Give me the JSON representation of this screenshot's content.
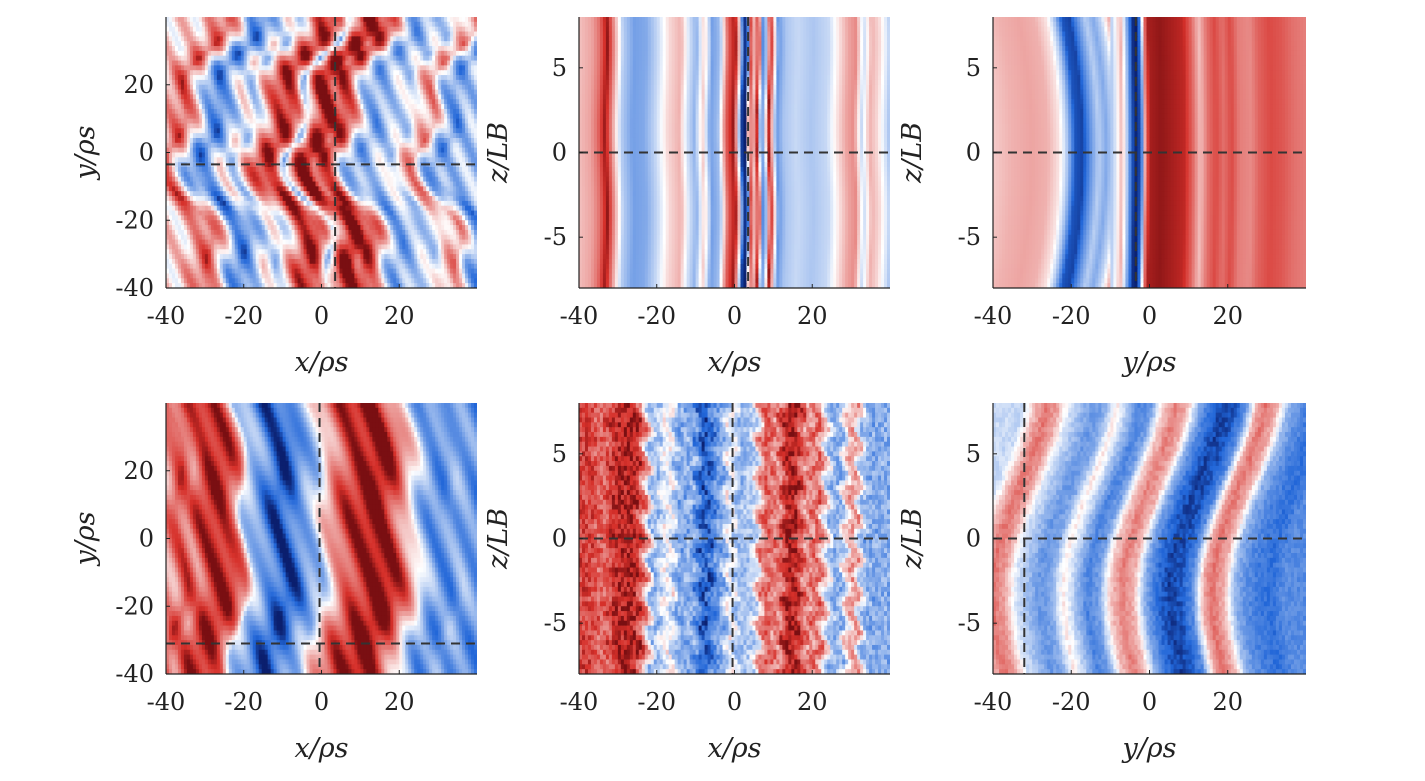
{
  "chart_data": [
    {
      "id": "top-left",
      "type": "heatmap",
      "xlabel": "x/ρs",
      "ylabel": "y/ρs",
      "xlim": [
        -40,
        40
      ],
      "ylim": [
        -40,
        40
      ],
      "xticks": [
        -40,
        -20,
        0,
        20
      ],
      "yticks": [
        -40,
        -20,
        0,
        20
      ],
      "xtick_labels": [
        "-40",
        "-20",
        "0",
        "20"
      ],
      "ytick_labels": [
        "-40",
        "-20",
        "0",
        "20"
      ],
      "crosshair": {
        "x": 3.5,
        "y": -3.5
      },
      "field": "stripes",
      "seed": 11,
      "profile": [
        [
          -40,
          0.15
        ],
        [
          -36,
          0.45
        ],
        [
          -33,
          0.7
        ],
        [
          -30,
          0.2
        ],
        [
          -27,
          -0.45
        ],
        [
          -24,
          -0.7
        ],
        [
          -21,
          -0.35
        ],
        [
          -18,
          0.05
        ],
        [
          -15,
          -0.25
        ],
        [
          -12,
          0.3
        ],
        [
          -9,
          0.75
        ],
        [
          -6,
          0.9
        ],
        [
          -4,
          0.55
        ],
        [
          -2,
          -0.3
        ],
        [
          0,
          0.5
        ],
        [
          2,
          0.95
        ],
        [
          4,
          1.0
        ],
        [
          6,
          0.7
        ],
        [
          8,
          0.85
        ],
        [
          10,
          0.6
        ],
        [
          13,
          -0.2
        ],
        [
          16,
          -0.5
        ],
        [
          19,
          -0.35
        ],
        [
          22,
          -0.15
        ],
        [
          25,
          -0.2
        ],
        [
          28,
          0.25
        ],
        [
          31,
          0.45
        ],
        [
          34,
          -0.3
        ],
        [
          37,
          -0.6
        ],
        [
          40,
          -0.3
        ]
      ]
    },
    {
      "id": "top-middle",
      "type": "heatmap",
      "xlabel": "x/ρs",
      "ylabel": "z/LB",
      "xlim": [
        -40,
        40
      ],
      "ylim": [
        -8,
        8
      ],
      "xticks": [
        -40,
        -20,
        0,
        20
      ],
      "yticks": [
        -5,
        0,
        5
      ],
      "xtick_labels": [
        "-40",
        "-20",
        "0",
        "20"
      ],
      "ytick_labels": [
        "-5",
        "0",
        "5"
      ],
      "crosshair": {
        "x": 3.5,
        "y": 0
      },
      "field": "bands",
      "seed": 23,
      "profile": [
        [
          -40,
          0.25
        ],
        [
          -37,
          0.35
        ],
        [
          -35,
          0.55
        ],
        [
          -33,
          0.95
        ],
        [
          -31,
          0.35
        ],
        [
          -29,
          -0.25
        ],
        [
          -26,
          -0.5
        ],
        [
          -23,
          -0.45
        ],
        [
          -20,
          -0.2
        ],
        [
          -17,
          0.15
        ],
        [
          -14,
          0.3
        ],
        [
          -12,
          -0.15
        ],
        [
          -10,
          -0.4
        ],
        [
          -8,
          0.2
        ],
        [
          -6,
          -0.5
        ],
        [
          -4,
          -0.35
        ],
        [
          -2,
          0.6
        ],
        [
          0,
          0.95
        ],
        [
          1,
          0.2
        ],
        [
          2,
          -0.9
        ],
        [
          3,
          -1.0
        ],
        [
          4,
          0.7
        ],
        [
          5,
          0.2
        ],
        [
          6,
          0.9
        ],
        [
          7,
          -0.6
        ],
        [
          8,
          -0.3
        ],
        [
          9,
          0.95
        ],
        [
          11,
          -0.55
        ],
        [
          13,
          -0.3
        ],
        [
          16,
          -0.2
        ],
        [
          20,
          -0.3
        ],
        [
          24,
          -0.2
        ],
        [
          27,
          0.15
        ],
        [
          29,
          0.35
        ],
        [
          31,
          0.45
        ],
        [
          33,
          -0.2
        ],
        [
          35,
          0.3
        ],
        [
          37,
          0.15
        ],
        [
          40,
          -0.3
        ]
      ]
    },
    {
      "id": "top-right",
      "type": "heatmap",
      "xlabel": "y/ρs",
      "ylabel": "z/LB",
      "xlim": [
        -40,
        40
      ],
      "ylim": [
        -8,
        8
      ],
      "xticks": [
        -40,
        -20,
        0,
        20
      ],
      "yticks": [
        -5,
        0,
        5
      ],
      "xtick_labels": [
        "-40",
        "-20",
        "0",
        "20"
      ],
      "ytick_labels": [
        "-5",
        "0",
        "5"
      ],
      "crosshair": {
        "x": -3.5,
        "y": 0
      },
      "field": "curved-bands",
      "seed": 37,
      "profile": [
        [
          -40,
          0.2
        ],
        [
          -35,
          0.3
        ],
        [
          -30,
          0.35
        ],
        [
          -26,
          0.3
        ],
        [
          -23,
          0.1
        ],
        [
          -21,
          -0.3
        ],
        [
          -19,
          -0.85
        ],
        [
          -17,
          -0.9
        ],
        [
          -15,
          -0.55
        ],
        [
          -13,
          -0.25
        ],
        [
          -11,
          -0.45
        ],
        [
          -9,
          -0.2
        ],
        [
          -7,
          0.3
        ],
        [
          -5,
          -0.6
        ],
        [
          -4,
          -0.95
        ],
        [
          -3,
          -1.0
        ],
        [
          -2,
          -0.7
        ],
        [
          -1,
          0.5
        ],
        [
          0,
          0.9
        ],
        [
          3,
          0.95
        ],
        [
          6,
          0.9
        ],
        [
          9,
          0.85
        ],
        [
          11,
          0.6
        ],
        [
          13,
          0.25
        ],
        [
          15,
          0.55
        ],
        [
          17,
          0.7
        ],
        [
          19,
          0.55
        ],
        [
          21,
          0.7
        ],
        [
          23,
          0.5
        ],
        [
          26,
          0.45
        ],
        [
          28,
          0.6
        ],
        [
          31,
          0.7
        ],
        [
          34,
          0.65
        ],
        [
          37,
          0.55
        ],
        [
          40,
          0.5
        ]
      ]
    },
    {
      "id": "bottom-left",
      "type": "heatmap",
      "xlabel": "x/ρs",
      "ylabel": "y/ρs",
      "xlim": [
        -40,
        40
      ],
      "ylim": [
        -40,
        40
      ],
      "xticks": [
        -40,
        -20,
        0,
        20
      ],
      "yticks": [
        -40,
        -20,
        0,
        20
      ],
      "xtick_labels": [
        "-40",
        "-20",
        "0",
        "20"
      ],
      "ytick_labels": [
        "-40",
        "-20",
        "0",
        "20"
      ],
      "crosshair": {
        "x": -0.5,
        "y": -31
      },
      "field": "chevrons",
      "seed": 51,
      "profile": [
        [
          -40,
          0.4
        ],
        [
          -37,
          0.75
        ],
        [
          -34,
          0.5
        ],
        [
          -31,
          0.8
        ],
        [
          -28,
          0.9
        ],
        [
          -25,
          0.85
        ],
        [
          -22,
          0.5
        ],
        [
          -20,
          -0.2
        ],
        [
          -17,
          -0.45
        ],
        [
          -14,
          -0.7
        ],
        [
          -11,
          -0.9
        ],
        [
          -8,
          -0.75
        ],
        [
          -5,
          -0.45
        ],
        [
          -2,
          -0.3
        ],
        [
          1,
          0.25
        ],
        [
          4,
          0.6
        ],
        [
          7,
          0.8
        ],
        [
          10,
          0.9
        ],
        [
          13,
          1.0
        ],
        [
          16,
          0.95
        ],
        [
          19,
          0.65
        ],
        [
          22,
          0.2
        ],
        [
          25,
          -0.3
        ],
        [
          28,
          -0.55
        ],
        [
          31,
          -0.6
        ],
        [
          34,
          -0.4
        ],
        [
          37,
          -0.5
        ],
        [
          40,
          -0.6
        ]
      ]
    },
    {
      "id": "bottom-middle",
      "type": "heatmap",
      "xlabel": "x/ρs",
      "ylabel": "z/LB",
      "xlim": [
        -40,
        40
      ],
      "ylim": [
        -8,
        8
      ],
      "xticks": [
        -40,
        -20,
        0,
        20
      ],
      "yticks": [
        -5,
        0,
        5
      ],
      "xtick_labels": [
        "-40",
        "-20",
        "0",
        "20"
      ],
      "ytick_labels": [
        "-5",
        "0",
        "5"
      ],
      "crosshair": {
        "x": -0.5,
        "y": 0
      },
      "field": "noisy-bands",
      "seed": 67,
      "profile": [
        [
          -40,
          0.7
        ],
        [
          -37,
          0.75
        ],
        [
          -34,
          0.55
        ],
        [
          -31,
          0.8
        ],
        [
          -28,
          0.9
        ],
        [
          -25,
          0.85
        ],
        [
          -23,
          0.4
        ],
        [
          -21,
          -0.45
        ],
        [
          -19,
          -0.2
        ],
        [
          -17,
          0.1
        ],
        [
          -15,
          -0.35
        ],
        [
          -13,
          -0.5
        ],
        [
          -11,
          -0.3
        ],
        [
          -9,
          -0.75
        ],
        [
          -7,
          -0.85
        ],
        [
          -5,
          -0.55
        ],
        [
          -3,
          -0.45
        ],
        [
          -1,
          0.1
        ],
        [
          1,
          -0.4
        ],
        [
          3,
          -0.3
        ],
        [
          5,
          -0.25
        ],
        [
          7,
          0.5
        ],
        [
          9,
          0.65
        ],
        [
          11,
          0.35
        ],
        [
          13,
          0.85
        ],
        [
          15,
          0.95
        ],
        [
          17,
          0.7
        ],
        [
          19,
          0.3
        ],
        [
          21,
          0.7
        ],
        [
          23,
          0.2
        ],
        [
          25,
          -0.4
        ],
        [
          27,
          -0.45
        ],
        [
          29,
          0.2
        ],
        [
          31,
          0.45
        ],
        [
          33,
          -0.3
        ],
        [
          35,
          -0.5
        ],
        [
          37,
          -0.4
        ],
        [
          40,
          -0.45
        ]
      ]
    },
    {
      "id": "bottom-right",
      "type": "heatmap",
      "xlabel": "y/ρs",
      "ylabel": "z/LB",
      "xlim": [
        -40,
        40
      ],
      "ylim": [
        -8,
        8
      ],
      "xticks": [
        -40,
        -20,
        0,
        20
      ],
      "yticks": [
        -5,
        0,
        5
      ],
      "xtick_labels": [
        "-40",
        "-20",
        "0",
        "20"
      ],
      "ytick_labels": [
        "-5",
        "0",
        "5"
      ],
      "crosshair": {
        "x": -32,
        "y": 0
      },
      "field": "wavy-bands",
      "seed": 83,
      "profile": [
        [
          -40,
          -0.2
        ],
        [
          -37,
          0.25
        ],
        [
          -34,
          0.55
        ],
        [
          -31,
          0.35
        ],
        [
          -28,
          -0.15
        ],
        [
          -25,
          -0.35
        ],
        [
          -22,
          -0.55
        ],
        [
          -19,
          -0.45
        ],
        [
          -16,
          0.1
        ],
        [
          -13,
          -0.3
        ],
        [
          -10,
          -0.65
        ],
        [
          -7,
          -0.5
        ],
        [
          -4,
          0.2
        ],
        [
          -1,
          0.5
        ],
        [
          2,
          0.3
        ],
        [
          5,
          -0.45
        ],
        [
          8,
          -0.75
        ],
        [
          11,
          -0.9
        ],
        [
          14,
          -0.85
        ],
        [
          17,
          -0.6
        ],
        [
          20,
          0.35
        ],
        [
          22,
          0.55
        ],
        [
          25,
          0.3
        ],
        [
          28,
          -0.4
        ],
        [
          31,
          -0.6
        ],
        [
          34,
          -0.7
        ],
        [
          37,
          -0.75
        ],
        [
          40,
          -0.6
        ]
      ]
    }
  ],
  "colors": {
    "diverging_negative_deep": "#0b1f6e",
    "diverging_negative": "#2166d8",
    "diverging_neutral": "#ffffff",
    "diverging_positive": "#d6302a",
    "diverging_positive_deep": "#7a0f12",
    "crosshair": "#333333",
    "axis": "#222222"
  }
}
